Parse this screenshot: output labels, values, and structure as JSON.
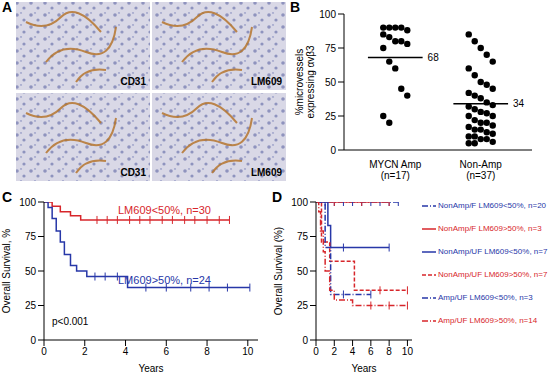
{
  "panel_a": {
    "title": "A",
    "images": [
      "CD31",
      "LM609",
      "CD31",
      "LM609"
    ]
  },
  "chart_data": [
    {
      "type": "scatter",
      "title": "B",
      "categories": [
        "MYCN Amp\n(n=17)",
        "Non-Amp\n(n=37)"
      ],
      "values": [
        [
          90,
          90,
          90,
          90,
          88,
          85,
          83,
          80,
          80,
          78,
          75,
          65,
          60,
          45,
          40,
          25,
          20
        ],
        [
          85,
          80,
          75,
          70,
          65,
          60,
          55,
          50,
          48,
          45,
          42,
          40,
          38,
          35,
          33,
          32,
          30,
          28,
          27,
          25,
          25,
          22,
          20,
          20,
          18,
          17,
          15,
          15,
          13,
          12,
          10,
          10,
          8,
          8,
          6,
          5,
          5
        ]
      ],
      "means": [
        68,
        34
      ],
      "color": "#000000",
      "ylabel": "%microvessels expressing αvβ3",
      "ylim": [
        0,
        100
      ],
      "yticks": [
        0,
        25,
        50,
        75,
        100
      ]
    },
    {
      "type": "line",
      "title": "C",
      "xlabel": "Years",
      "ylabel": "Overall Survival, %",
      "xlim": [
        0,
        10.5
      ],
      "xticks": [
        0,
        2,
        4,
        6,
        8,
        10
      ],
      "ylim": [
        0,
        100
      ],
      "yticks": [
        0,
        25,
        50,
        75,
        100
      ],
      "annotations": [
        "p<0.001"
      ],
      "series": [
        {
          "name": "LM609<50%, n=30",
          "color": "#d7262b",
          "line_style": "solid",
          "x": [
            0,
            0.4,
            0.8,
            1.3,
            1.8,
            9.1
          ],
          "values": [
            100,
            97,
            93,
            90,
            87,
            87
          ],
          "censored": [
            2.6,
            3.1,
            3.6,
            4.2,
            4.7,
            5.2,
            5.8,
            6.3,
            6.9,
            7.4,
            8.0,
            8.6,
            9.1
          ]
        },
        {
          "name": "LM609>50%, n=24",
          "color": "#2737a8",
          "line_style": "solid",
          "x": [
            0,
            0.2,
            0.4,
            0.6,
            0.8,
            1.0,
            1.3,
            1.6,
            2.1,
            4.1,
            10.1
          ],
          "values": [
            100,
            96,
            88,
            79,
            71,
            62,
            54,
            50,
            46,
            38,
            38
          ],
          "censored": [
            2.5,
            3.0,
            3.6,
            5.0,
            6.0,
            7.2,
            8.1,
            9.0,
            10.1
          ]
        }
      ]
    },
    {
      "type": "line",
      "title": "D",
      "xlabel": "Years",
      "ylabel": "Overall Survival (%)",
      "xlim": [
        0,
        10.5
      ],
      "xticks": [
        0,
        2,
        4,
        6,
        8,
        10
      ],
      "ylim": [
        0,
        100
      ],
      "yticks": [
        0,
        25,
        50,
        75,
        100
      ],
      "legend": "right",
      "series": [
        {
          "name": "NonAmp/F LM609<50%, n=20",
          "color": "#2737a8",
          "line_style": "dashdot",
          "x": [
            0,
            9.0
          ],
          "values": [
            100,
            100
          ],
          "censored": [
            1,
            2,
            3,
            4,
            5,
            6,
            7,
            8,
            9
          ]
        },
        {
          "name": "NonAmp/F LM609>50%, n=3",
          "color": "#d7262b",
          "line_style": "solid",
          "x": [
            0,
            8.0
          ],
          "values": [
            100,
            100
          ],
          "censored": [
            2,
            5,
            8
          ]
        },
        {
          "name": "NonAmp/UF LM609<50%, n=7",
          "color": "#2737a8",
          "line_style": "solid",
          "x": [
            0,
            1.3,
            1.6,
            8.0
          ],
          "values": [
            100,
            83,
            67,
            67
          ],
          "censored": [
            3,
            8
          ]
        },
        {
          "name": "NonAmp/UF LM609>50%, n=7",
          "color": "#d7262b",
          "line_style": "dashed",
          "x": [
            0,
            0.6,
            1.5,
            4.2,
            10.0
          ],
          "values": [
            100,
            71,
            57,
            36,
            36
          ],
          "censored": [
            7,
            10
          ]
        },
        {
          "name": "Amp/UF LM609<50%, n=3",
          "color": "#2737a8",
          "line_style": "dashdot",
          "x": [
            0,
            1.0,
            1.6,
            6.0
          ],
          "values": [
            100,
            67,
            33,
            33
          ],
          "censored": [
            3,
            6
          ]
        },
        {
          "name": "Amp/UF LM609>50%, n=14",
          "color": "#d7262b",
          "line_style": "dashdot",
          "x": [
            0,
            0.3,
            0.5,
            0.8,
            1.0,
            1.5,
            2.0,
            4.0,
            10.0
          ],
          "values": [
            100,
            93,
            79,
            64,
            50,
            36,
            29,
            25,
            25
          ],
          "censored": [
            6,
            8,
            10
          ]
        }
      ]
    }
  ]
}
